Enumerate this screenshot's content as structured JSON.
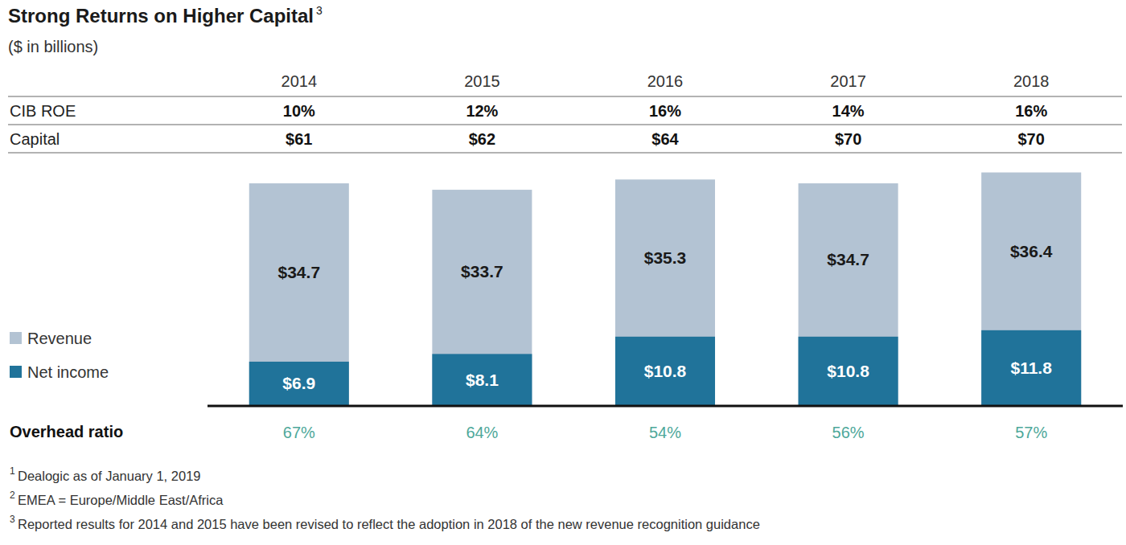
{
  "chart_data": {
    "type": "bar",
    "title": "Strong Returns on Higher Capital",
    "title_note": "3",
    "subtitle": "($ in billions)",
    "categories": [
      "2014",
      "2015",
      "2016",
      "2017",
      "2018"
    ],
    "series": [
      {
        "name": "Revenue",
        "color": "#b3c3d3",
        "values": [
          34.7,
          33.7,
          35.3,
          34.7,
          36.4
        ],
        "value_labels": [
          "$34.7",
          "$33.7",
          "$35.3",
          "$34.7",
          "$36.4"
        ]
      },
      {
        "name": "Net income",
        "color": "#20739a",
        "values": [
          6.9,
          8.1,
          10.8,
          10.8,
          11.8
        ],
        "value_labels": [
          "$6.9",
          "$8.1",
          "$10.8",
          "$10.8",
          "$11.8"
        ]
      }
    ],
    "stacked": false,
    "data_labels": true,
    "tick_labels": "x",
    "legend": "left",
    "ylim": [
      0,
      40
    ],
    "table_rows": [
      {
        "label": "CIB ROE",
        "values": [
          10,
          12,
          16,
          14,
          16
        ],
        "value_labels": [
          "10%",
          "12%",
          "16%",
          "14%",
          "16%"
        ]
      },
      {
        "label": "Capital",
        "values": [
          61,
          62,
          64,
          70,
          70
        ],
        "value_labels": [
          "$61",
          "$62",
          "$64",
          "$70",
          "$70"
        ]
      }
    ],
    "footer_row": {
      "label": "Overhead ratio",
      "values": [
        67,
        64,
        54,
        56,
        57
      ],
      "value_labels": [
        "67%",
        "64%",
        "54%",
        "56%",
        "57%"
      ]
    },
    "notes": [
      {
        "mark": "1",
        "text": "Dealogic as of January 1, 2019"
      },
      {
        "mark": "2",
        "text": "EMEA = Europe/Middle East/Africa"
      },
      {
        "mark": "3",
        "text": "Reported results for 2014 and 2015 have been revised to reflect the adoption in 2018 of the new revenue recognition guidance"
      }
    ]
  }
}
